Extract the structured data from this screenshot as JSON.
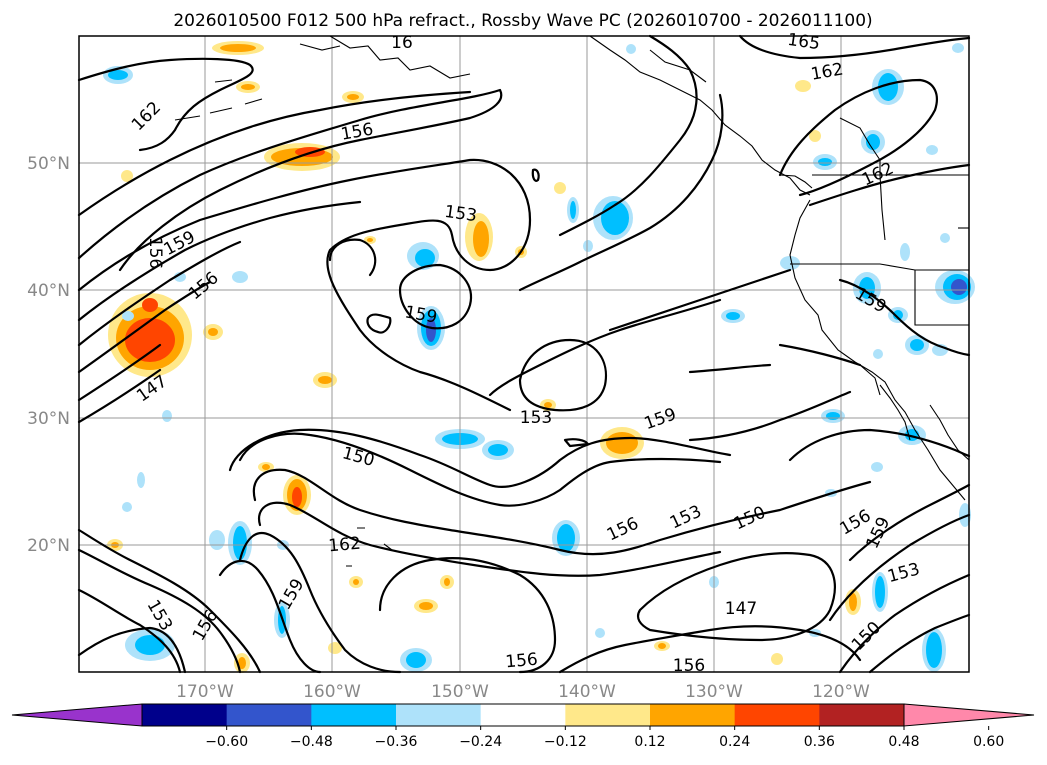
{
  "title": "2026010500 F012 500 hPa refract., Rossby Wave PC (2026010700 - 2026011100)",
  "lat_labels": [
    "50°N",
    "40°N",
    "30°N",
    "20°N"
  ],
  "lon_labels": [
    "170°W",
    "160°W",
    "150°W",
    "140°W",
    "130°W",
    "120°W"
  ],
  "colorbar": {
    "ticks": [
      "−0.60",
      "−0.48",
      "−0.36",
      "−0.24",
      "−0.12",
      "0.12",
      "0.24",
      "0.36",
      "0.48",
      "0.60"
    ],
    "colors": [
      "#9933cc",
      "#00008b",
      "#3355cc",
      "#00bfff",
      "#aee2fa",
      "#ffffff",
      "#ffe88a",
      "#ffa500",
      "#ff4500",
      "#b22222",
      "#ff88aa"
    ]
  },
  "contour_labels": [
    {
      "text": "162"
    },
    {
      "text": "165"
    },
    {
      "text": "162"
    },
    {
      "text": "156"
    },
    {
      "text": "162"
    },
    {
      "text": "153"
    },
    {
      "text": "159"
    },
    {
      "text": "156"
    },
    {
      "text": "156"
    },
    {
      "text": "159"
    },
    {
      "text": "159"
    },
    {
      "text": "147"
    },
    {
      "text": "153"
    },
    {
      "text": "159"
    },
    {
      "text": "150"
    },
    {
      "text": "156"
    },
    {
      "text": "153"
    },
    {
      "text": "150"
    },
    {
      "text": "156"
    },
    {
      "text": "159"
    },
    {
      "text": "162"
    },
    {
      "text": "159"
    },
    {
      "text": "153"
    },
    {
      "text": "156"
    },
    {
      "text": "147"
    },
    {
      "text": "153"
    },
    {
      "text": "150"
    },
    {
      "text": "156"
    },
    {
      "text": "156"
    },
    {
      "text": "16"
    }
  ]
}
